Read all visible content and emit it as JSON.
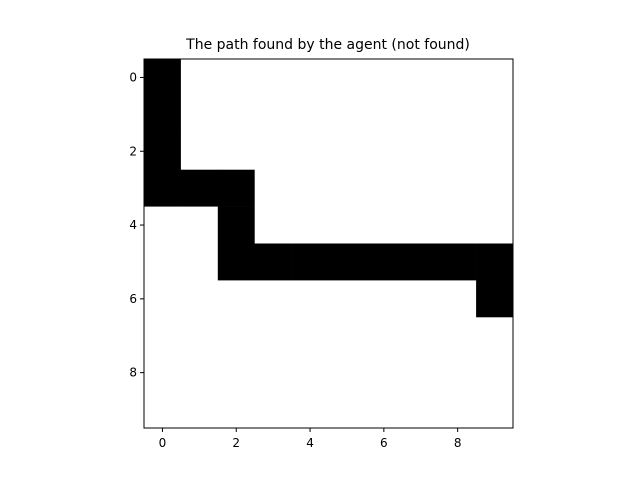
{
  "chart_data": {
    "type": "heatmap",
    "title": "The path found by the agent (not found)",
    "xlabel": "",
    "ylabel": "",
    "rows": 10,
    "cols": 10,
    "xlim": [
      -0.5,
      9.5
    ],
    "ylim": [
      9.5,
      -0.5
    ],
    "x_ticks": [
      0,
      2,
      4,
      6,
      8
    ],
    "y_ticks": [
      0,
      2,
      4,
      6,
      8
    ],
    "colormap": {
      "0": "#ffffff",
      "1": "#000000"
    },
    "grid": [
      [
        1,
        0,
        0,
        0,
        0,
        0,
        0,
        0,
        0,
        0
      ],
      [
        1,
        0,
        0,
        0,
        0,
        0,
        0,
        0,
        0,
        0
      ],
      [
        1,
        0,
        0,
        0,
        0,
        0,
        0,
        0,
        0,
        0
      ],
      [
        1,
        1,
        1,
        0,
        0,
        0,
        0,
        0,
        0,
        0
      ],
      [
        0,
        0,
        1,
        0,
        0,
        0,
        0,
        0,
        0,
        0
      ],
      [
        0,
        0,
        1,
        1,
        1,
        1,
        1,
        1,
        1,
        1
      ],
      [
        0,
        0,
        0,
        0,
        0,
        0,
        0,
        0,
        0,
        1
      ],
      [
        0,
        0,
        0,
        0,
        0,
        0,
        0,
        0,
        0,
        0
      ],
      [
        0,
        0,
        0,
        0,
        0,
        0,
        0,
        0,
        0,
        0
      ],
      [
        0,
        0,
        0,
        0,
        0,
        0,
        0,
        0,
        0,
        0
      ]
    ],
    "grid_lines": false,
    "legend": "none"
  }
}
